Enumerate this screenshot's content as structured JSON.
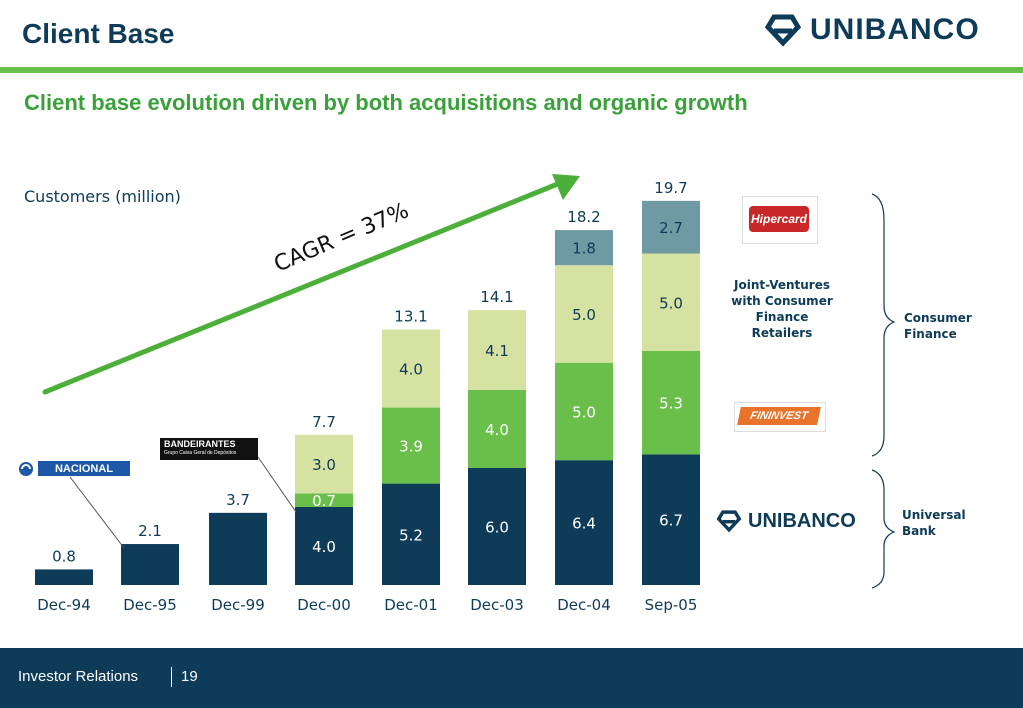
{
  "header": {
    "title": "Client Base",
    "logo_text": "UNIBANCO"
  },
  "subtitle": "Client base evolution driven by both acquisitions and organic growth",
  "annotations": {
    "cagr": "CAGR = 37%",
    "joint_ventures": "Joint-Ventures\nwith Consumer\nFinance\nRetailers",
    "consumer_finance": "Consumer\nFinance",
    "universal_bank": "Universal\nBank"
  },
  "brands": {
    "hipercard": "Hipercard",
    "fininvest": "FININVEST",
    "bandeirantes": "BANDEIRANTES",
    "bandeirantes_sub": "Grupo Caixa Geral de Depósitos",
    "nacional": "NACIONAL",
    "unibanco": "UNIBANCO"
  },
  "colors": {
    "navy": "#0d3b58",
    "green": "#6abf4b",
    "light_green": "#d6e2a2",
    "teal": "#6f9aa3",
    "arrow": "#4caf3a"
  },
  "chart_data": {
    "type": "bar",
    "stacked": true,
    "ylabel": "Customers (million)",
    "categories": [
      "Dec-94",
      "Dec-95",
      "Dec-99",
      "Dec-00",
      "Dec-01",
      "Dec-03",
      "Dec-04",
      "Sep-05"
    ],
    "totals": [
      "0.8",
      "2.1",
      "3.7",
      "7.7",
      "13.1",
      "14.1",
      "18.2",
      "19.7"
    ],
    "series": [
      {
        "color": "#0d3b58",
        "values": [
          0.8,
          2.1,
          3.7,
          4.0,
          5.2,
          6.0,
          6.4,
          6.7
        ],
        "labels": [
          "",
          "",
          "",
          "4.0",
          "5.2",
          "6.0",
          "6.4",
          "6.7"
        ]
      },
      {
        "color": "#6abf4b",
        "values": [
          0,
          0,
          0,
          0.7,
          3.9,
          4.0,
          5.0,
          5.3
        ],
        "labels": [
          "",
          "",
          "",
          "0.7",
          "3.9",
          "4.0",
          "5.0",
          "5.3"
        ]
      },
      {
        "color": "#d6e2a2",
        "values": [
          0,
          0,
          0,
          3.0,
          4.0,
          4.1,
          5.0,
          5.0
        ],
        "labels": [
          "",
          "",
          "",
          "3.0",
          "4.0",
          "4.1",
          "5.0",
          "5.0"
        ]
      },
      {
        "color": "#6f9aa3",
        "values": [
          0,
          0,
          0,
          0,
          0,
          0,
          1.8,
          2.7
        ],
        "labels": [
          "",
          "",
          "",
          "",
          "",
          "",
          "1.8",
          "2.7"
        ]
      }
    ],
    "ylim": [
      0,
      20
    ]
  }
}
